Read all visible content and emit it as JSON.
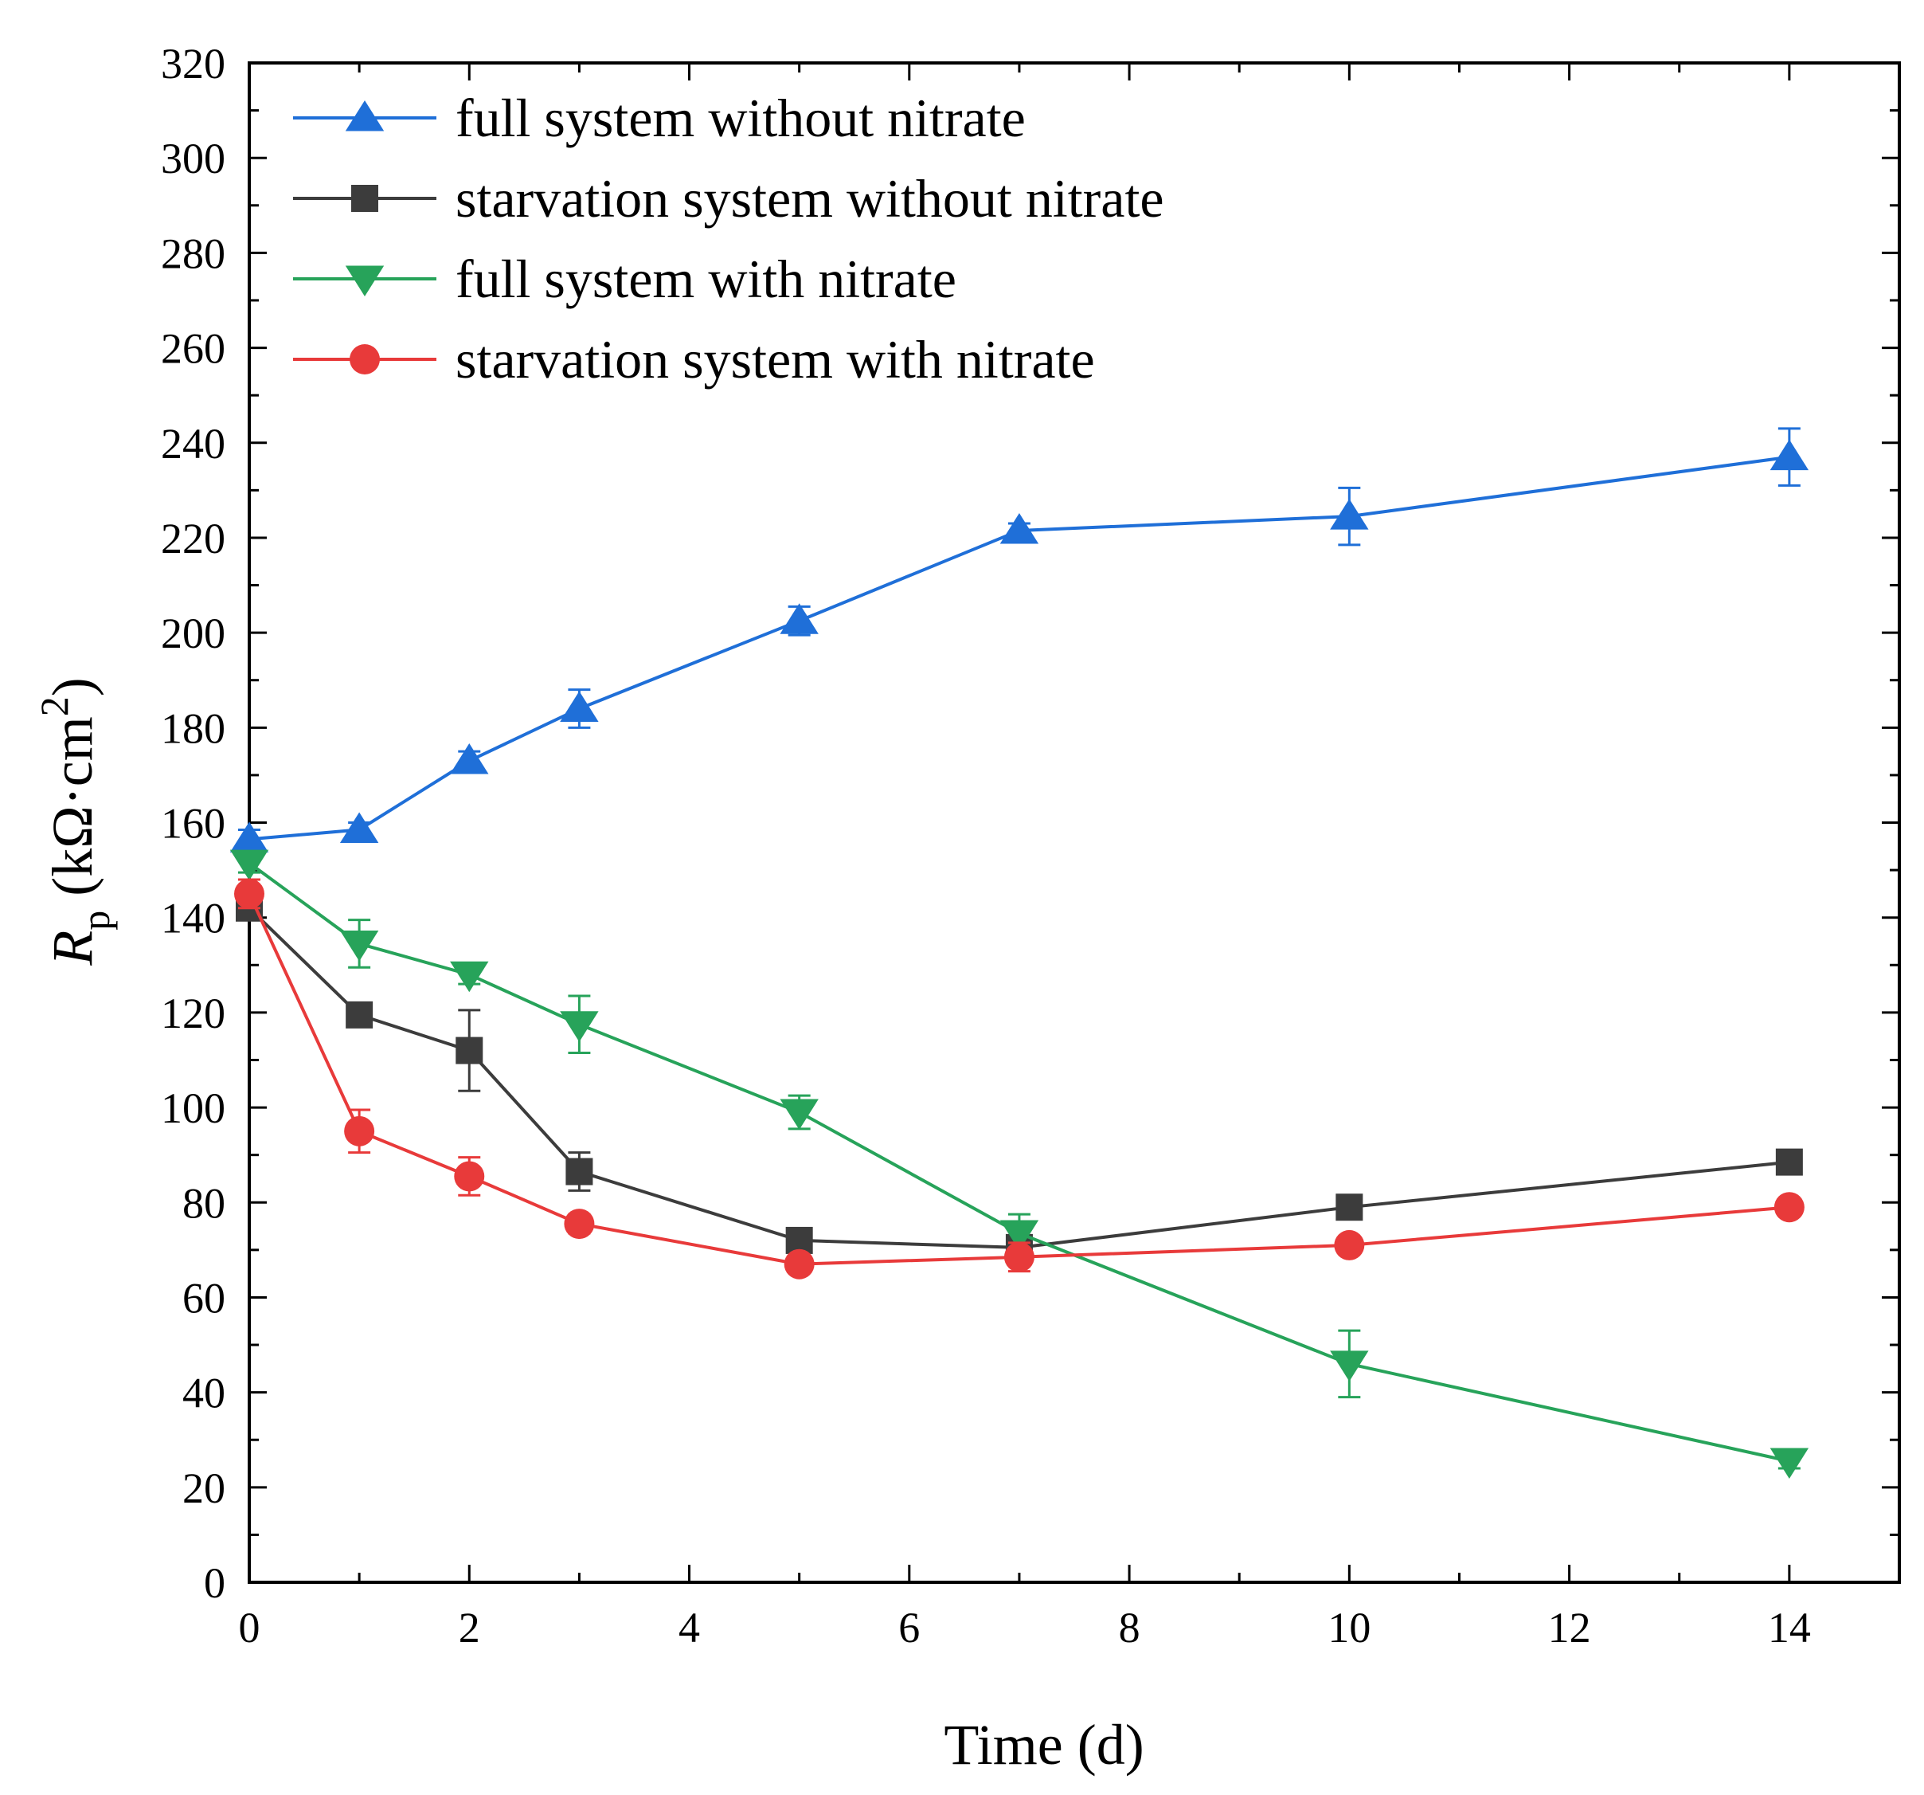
{
  "chart_data": {
    "type": "line",
    "title": "",
    "xlabel": "Time (d)",
    "ylabel": {
      "symbol": "R",
      "subscript": "p",
      "unit_open": " (kΩ·cm",
      "unit_power": "2",
      "unit_close": ")"
    },
    "xlim": [
      0,
      15
    ],
    "ylim": [
      0,
      320
    ],
    "x_ticks": [
      "0",
      "2",
      "4",
      "6",
      "8",
      "10",
      "12",
      "14"
    ],
    "y_ticks": [
      "0",
      "20",
      "40",
      "60",
      "80",
      "100",
      "120",
      "140",
      "160",
      "180",
      "200",
      "220",
      "240",
      "260",
      "280",
      "300",
      "320"
    ],
    "legend_position": "top-left",
    "grid": false,
    "series": [
      {
        "name": "full system without nitrate",
        "color": "#1f6fd8",
        "marker": "triangle-up",
        "x": [
          0,
          1,
          2,
          3,
          5,
          7,
          10,
          14
        ],
        "y": [
          156.5,
          158.5,
          173,
          184,
          202.5,
          221.5,
          224.5,
          237
        ],
        "err": [
          2,
          1.5,
          2,
          4,
          3,
          1.5,
          6,
          6
        ]
      },
      {
        "name": "starvation system without nitrate",
        "color": "#3c3c3c",
        "marker": "square",
        "x": [
          0,
          1,
          2,
          3,
          5,
          7,
          10,
          14
        ],
        "y": [
          142,
          119.5,
          112,
          86.5,
          72,
          70.5,
          79,
          88.5
        ],
        "err": [
          2,
          1.5,
          8.5,
          4,
          2,
          1.5,
          1.5,
          1.5
        ]
      },
      {
        "name": "full system with nitrate",
        "color": "#27a35a",
        "marker": "triangle-down",
        "x": [
          0,
          1,
          2,
          3,
          5,
          7,
          10,
          14
        ],
        "y": [
          151.5,
          134.5,
          128,
          117.5,
          99,
          73.5,
          46,
          25.5
        ],
        "err": [
          2,
          5,
          2,
          6,
          3.5,
          4,
          7,
          1.5
        ]
      },
      {
        "name": "starvation system with nitrate",
        "color": "#e83a3a",
        "marker": "circle",
        "x": [
          0,
          1,
          2,
          3,
          5,
          7,
          10,
          14
        ],
        "y": [
          145,
          95,
          85.5,
          75.5,
          67,
          68.5,
          71,
          79
        ],
        "err": [
          3,
          4.5,
          4,
          2,
          1.5,
          3,
          1.5,
          1.5
        ]
      }
    ]
  }
}
